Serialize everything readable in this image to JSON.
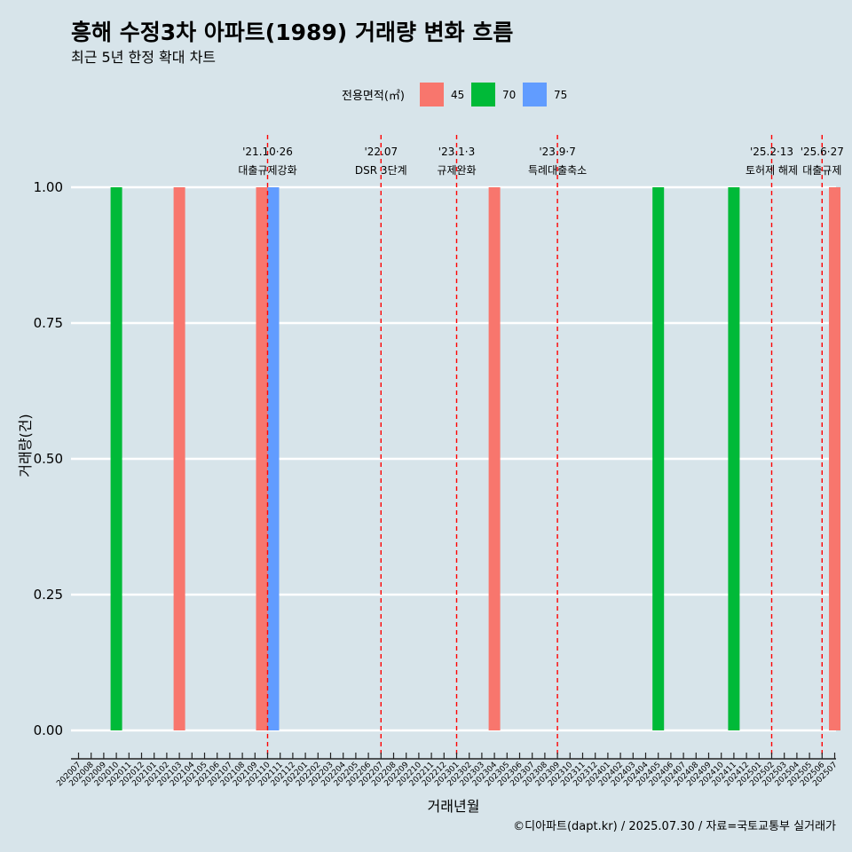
{
  "chart_data": {
    "type": "bar",
    "title": "흥해 수정3차 아파트(1989) 거래량 변화 흐름",
    "subtitle": "최근 5년 한정 확대 차트",
    "xlabel": "거래년월",
    "ylabel": "거래량(건)",
    "ylim": [
      0,
      1
    ],
    "yticks": [
      "0.00",
      "0.25",
      "0.50",
      "0.75",
      "1.00"
    ],
    "grid": true,
    "legend": {
      "title": "전용면적(㎡)",
      "placement": "top",
      "items": [
        {
          "label": "45",
          "color": "#f8766d"
        },
        {
          "label": "70",
          "color": "#00ba38"
        },
        {
          "label": "75",
          "color": "#619cff"
        }
      ]
    },
    "categories": [
      "202007",
      "202008",
      "202009",
      "202010",
      "202011",
      "202012",
      "202101",
      "202102",
      "202103",
      "202104",
      "202105",
      "202106",
      "202107",
      "202108",
      "202109",
      "202110",
      "202111",
      "202112",
      "202201",
      "202202",
      "202203",
      "202204",
      "202205",
      "202206",
      "202207",
      "202208",
      "202209",
      "202210",
      "202211",
      "202212",
      "202301",
      "202302",
      "202303",
      "202304",
      "202305",
      "202306",
      "202307",
      "202308",
      "202309",
      "202310",
      "202311",
      "202312",
      "202401",
      "202402",
      "202403",
      "202404",
      "202405",
      "202406",
      "202407",
      "202408",
      "202409",
      "202410",
      "202411",
      "202412",
      "202501",
      "202502",
      "202503",
      "202504",
      "202505",
      "202506",
      "202507"
    ],
    "bars": [
      {
        "month": "202010",
        "area": "70",
        "value": 1
      },
      {
        "month": "202103",
        "area": "45",
        "value": 1
      },
      {
        "month": "202110",
        "area": "45",
        "value": 1
      },
      {
        "month": "202110",
        "area": "75",
        "value": 1
      },
      {
        "month": "202304",
        "area": "45",
        "value": 1
      },
      {
        "month": "202405",
        "area": "70",
        "value": 1
      },
      {
        "month": "202411",
        "area": "70",
        "value": 1
      },
      {
        "month": "202507",
        "area": "45",
        "value": 1
      }
    ],
    "events": [
      {
        "month": "202110",
        "date": "'21.10·26",
        "label": "대출규제강화"
      },
      {
        "month": "202207",
        "date": "'22.07",
        "label": "DSR 3단계"
      },
      {
        "month": "202301",
        "date": "'23.1·3",
        "label": "규제완화"
      },
      {
        "month": "202309",
        "date": "'23.9·7",
        "label": "특례대출축소"
      },
      {
        "month": "202502",
        "date": "'25.2·13",
        "label": "토허제 해제"
      },
      {
        "month": "202506",
        "date": "'25.6·27",
        "label": "대출규제"
      }
    ],
    "caption": "©디아파트(dapt.kr) / 2025.07.30 / 자료=국토교통부 실거래가"
  }
}
